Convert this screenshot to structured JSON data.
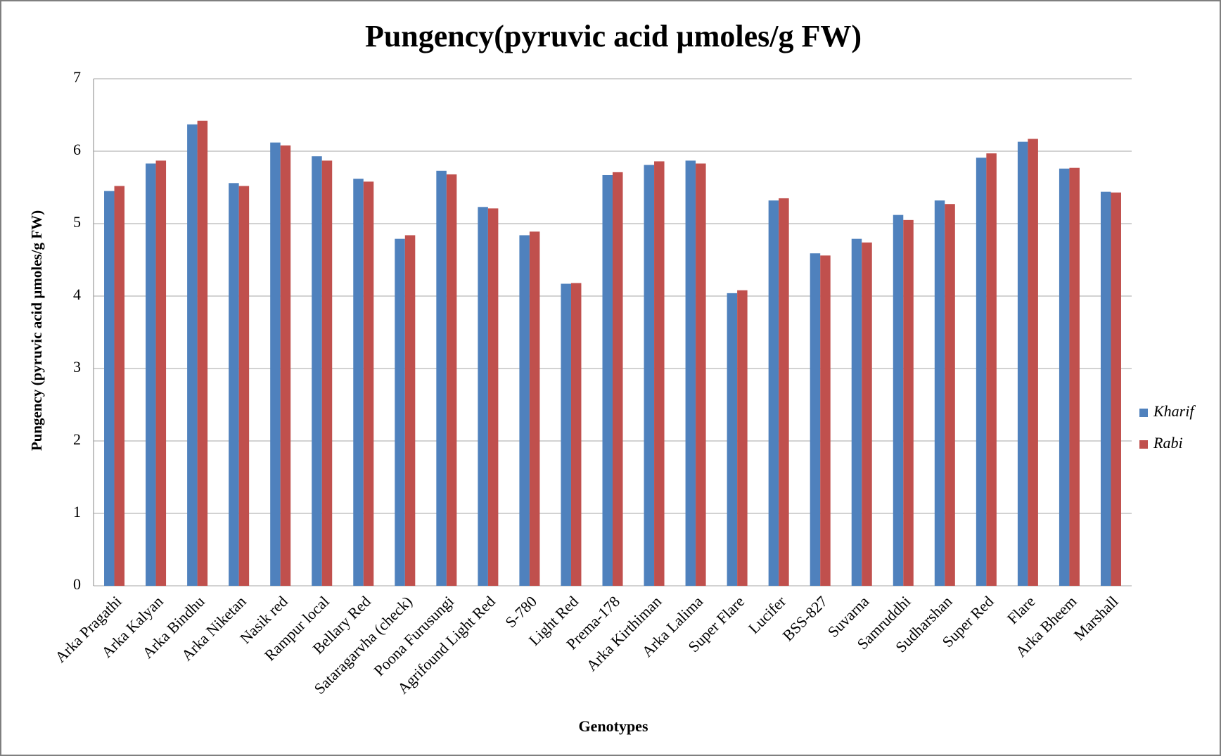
{
  "chart_data": {
    "type": "bar",
    "title": "Pungency(pyruvic acid µmoles/g FW)",
    "x_label": "Genotypes",
    "y_label": "Pungency (pyruvic  acid µmoles/g FW)",
    "categories": [
      "Arka Pragathi",
      "Arka Kalyan",
      "Arka Bindhu",
      "Arka Niketan",
      "Nasik red",
      "Rampur local",
      "Bellary Red",
      "Sataragarvha (check)",
      "Poona Furusungi",
      "Agrifound Light Red",
      "S-780",
      "Light Red",
      "Prema-178",
      "Arka Kirthiman",
      "Arka Lalima",
      "Super Flare",
      "Lucifer",
      "BSS-827",
      "Suvarna",
      "Samruddhi",
      "Sudharshan",
      "Super Red",
      "Flare",
      "Arka Bheem",
      "Marshall"
    ],
    "series": [
      {
        "name": "Kharif",
        "color": "#4f81bd",
        "values": [
          5.45,
          5.83,
          6.37,
          5.56,
          6.12,
          5.93,
          5.62,
          4.79,
          5.73,
          5.23,
          4.84,
          4.17,
          5.67,
          5.81,
          5.87,
          4.04,
          5.32,
          4.59,
          4.79,
          5.12,
          5.32,
          5.91,
          6.13,
          5.76,
          5.44
        ]
      },
      {
        "name": "Rabi",
        "color": "#c0504d",
        "values": [
          5.52,
          5.87,
          6.42,
          5.52,
          6.08,
          5.87,
          5.58,
          4.84,
          5.68,
          5.21,
          4.89,
          4.18,
          5.71,
          5.86,
          5.83,
          4.08,
          5.35,
          4.56,
          4.74,
          5.05,
          5.27,
          5.97,
          6.17,
          5.77,
          5.43
        ]
      }
    ],
    "ylim": [
      0,
      7
    ],
    "yticks": [
      0,
      1,
      2,
      3,
      4,
      5,
      6,
      7
    ],
    "grid": true,
    "legend": "right"
  }
}
